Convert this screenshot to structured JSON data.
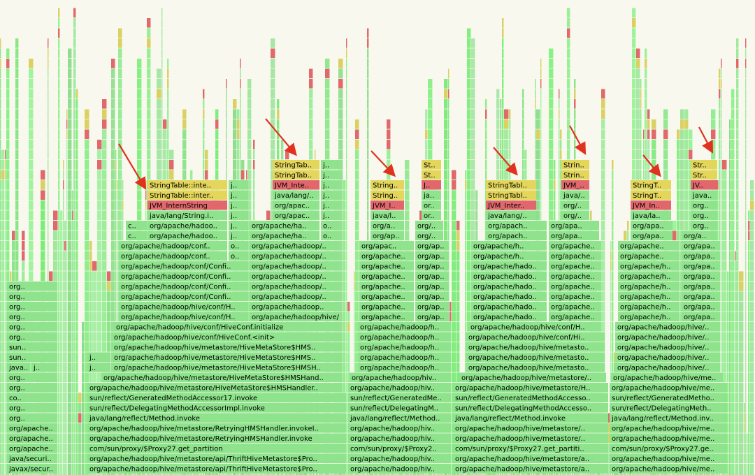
{
  "flame_rows": [
    [
      "javax/secur..",
      "org/apache/hadoop/hive/metastore/api/ThriftHiveMetastore$Pro..",
      "org/apache/hadoop/hiv..",
      "org/apache/hadoop/hive/metastore/a..",
      "org/apache/hadoop/hive/me.."
    ],
    [
      "java/securi..",
      "org/apache/hadoop/hive/metastore/api/ThriftHiveMetastore$Pro..",
      "org/apache/hadoop/hiv..",
      "org/apache/hadoop/hive/metastore/a..",
      "org/apache/hadoop/hive/me.."
    ],
    [
      "org/apache..",
      "com/sun/proxy/$Proxy27.get_partition",
      "com/sun/proxy/$Proxy2..",
      "com/sun/proxy/$Proxy27.get_partiti..",
      "com/sun/proxy/$Proxy27.ge.."
    ],
    [
      "org/apache..",
      "org/apache/hadoop/hive/metastore/RetryingHMSHandler.invoke",
      "org/apache/hadoop/hiv..",
      "org/apache/hadoop/hive/metastore/..",
      "org/apache/hadoop/hive/me.."
    ],
    [
      "org/apache..",
      "org/apache/hadoop/hive/metastore/RetryingHMSHandler.invokeI..",
      "org/apache/hadoop/hiv..",
      "org/apache/hadoop/hive/metastore/..",
      "org/apache/hadoop/hive/me.."
    ],
    [
      "org..",
      "java/lang/reflect/Method.invoke",
      "java/lang/reflect/Method..",
      "java/lang/reflect/Method.invoke",
      "java/lang/reflect/Method.inv.."
    ],
    [
      "org..",
      "sun/reflect/DelegatingMethodAccessorImpl.invoke",
      "sun/reflect/DelegatingM..",
      "sun/reflect/DelegatingMethodAccesso..",
      "sun/reflect/DelegatingMeth.."
    ],
    [
      "co..",
      "sun/reflect/GeneratedMethodAccessor17.invoke",
      "sun/reflect/GeneratedMe..",
      "sun/reflect/GeneratedMethodAccesso..",
      "sun/reflect/GeneratedMetho.."
    ],
    [
      "org..",
      "org/apache/hadoop/hive/metastore/HiveMetaStore$HMSHandler..",
      "org/apache/hadoop/hiv..",
      "org/apache/hadoop/hive/metastore/H..",
      "org/apache/hadoop/hive/me.."
    ],
    [
      "org..",
      "org/apache/hadoop/hive/metastore/HiveMetaStore$HMSHand..",
      "org/apache/hadoop/hiv..",
      "org/apache/hadoop/hive/metastore/..",
      "org/apache/hadoop/hive/me.."
    ],
    [
      "java..",
      "j..",
      "j..",
      "org/apache/hadoop/hive/metastore/HiveMetaStore$HMSH..",
      "org/apache/hadoop/h..",
      "org/apache/hadoop/hive/metasto..",
      "org/apache/hadoop/hive/.."
    ],
    [
      "sun..",
      "j..",
      "org/apache/hadoop/hive/metastore/HiveMetaStore$HMS..",
      "org/apache/hadoop/h..",
      "org/apache/hadoop/hive/metasto..",
      "org/apache/hadoop/hive/.."
    ],
    [
      "sun..",
      "org/apache/hadoop/hive/metastore/HiveMetaStore$HMS..",
      "org/apache/hadoop/h..",
      "org/apache/hadoop/hive/metasto..",
      "org/apache/hadoop/hive/.."
    ],
    [
      "org..",
      "org/apache/hadoop/hive/conf/HiveConf.<init>",
      "org/apache/hadoop/h..",
      "org/apache/hadoop/hive/conf/Hi..",
      "org/apache/hadoop/hive/.."
    ],
    [
      "org..",
      "org/apache/hadoop/hive/conf/HiveConf.initialize",
      "org/apache/hadoop/h..",
      "org/apache/hadoop/hive/conf/H..",
      "org/apache/hadoop/hive/.."
    ],
    [
      "org..",
      "org/apache/hadoop/hive/conf/H..",
      "org/apache/hadoop/hive/conf/H..",
      "org/apache..",
      "org/ap..",
      "org/apache/hado..",
      "org/apache..",
      "org/apache/h..",
      "org/apa.."
    ],
    [
      "org..",
      "org/apache/hadoop/hive/conf/H..",
      "org/apache/hadoop..",
      "org/apache..",
      "org/ap..",
      "org/apache/hado..",
      "org/apache..",
      "org/apache/h..",
      "org/apa.."
    ],
    [
      "org..",
      "org/apache/hadoop/conf/Confi..",
      "org/apache/hadoop/..",
      "org/apache..",
      "org/ap..",
      "org/apache/hado..",
      "org/apache..",
      "org/apache/h..",
      "org/apa.."
    ],
    [
      "org..",
      "org/apache/hadoop/conf/Confi..",
      "org/apache/hadoop/..",
      "org/apache..",
      "org/ap..",
      "org/apache/hado..",
      "org/apache..",
      "org/apache/h..",
      "org/apa.."
    ],
    [
      "org/apache/hadoop/conf/Confi..",
      "org/apache/hadoop/..",
      "org/apache..",
      "org/ap..",
      "org/apache/hado..",
      "org/apache..",
      "org/apache/h..",
      "org/apa.."
    ],
    [
      "org/apache/hadoop/conf/Confi..",
      "org/apache/hadoop/..",
      "org/apache..",
      "org/ap..",
      "org/apache/hado..",
      "org/apache..",
      "org/apache/h..",
      "org/apa.."
    ],
    [
      "org/apache/hadoop/conf..",
      "o..",
      "org/apache/hadoop/..",
      "org/apache..",
      "org/ap..",
      "org/apache/h..",
      "org/apache..",
      "org/apache..",
      "org/apa.."
    ],
    [
      "org/apache/hadoop/conf..",
      "o..",
      "org/apache/hadoop/..",
      "org/apac..",
      "org/ap..",
      "org/apache/h..",
      "org/apache..",
      "org/apache..",
      "org/apa.."
    ],
    [
      "c..",
      "org/apache/hadoo..",
      "j..",
      "org/apache/ha..",
      "o..",
      "org/ap..",
      "org/..",
      "org/apach..",
      "org/apa..",
      "org/apa..",
      "org/a.."
    ],
    [
      "c..",
      "org/apache/hadoo..",
      "j..",
      "org/apache/ha..",
      "o..",
      "org/a..",
      "org/..",
      "org/apach..",
      "org/apa..",
      "org/apa..",
      "org.."
    ],
    [
      "java/lang/String.i..",
      "j..",
      "org/apac..",
      "j..",
      "java/l..",
      "or..",
      "java/lang/..",
      "org/..",
      "java/la..",
      "org.."
    ],
    [
      "JVM_InternString",
      "j..",
      "org/apac..",
      "j..",
      "JVM_I..",
      "or..",
      "JVM_Inter..",
      "org/..",
      "JVM_In..",
      "org.."
    ],
    [
      "StringTable::inter..",
      "j..",
      "java/lang/..",
      "j..",
      "String..",
      "ja..",
      "StringTabl..",
      "java/..",
      "StringT..",
      "java.."
    ],
    [
      "StringTable::inte..",
      "j..",
      "JVM_Inte..",
      "j..",
      "String..",
      "J..",
      "StringTabl..",
      "JVM_..",
      "StringT..",
      "JV.."
    ],
    [
      "StringTab..",
      "j..",
      "St..",
      "Strin..",
      "Str.."
    ],
    [
      "StringTab..",
      "j..",
      "St..",
      "Strin..",
      "Str.."
    ]
  ]
}
